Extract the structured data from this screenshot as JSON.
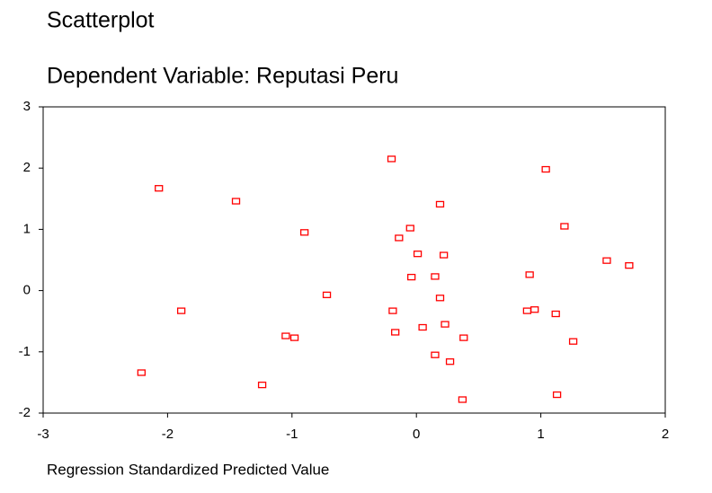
{
  "chart_data": {
    "type": "scatter",
    "title": "Scatterplot",
    "subtitle": "Dependent Variable: Reputasi Peru",
    "x_label": "Regression Standardized Predicted Value",
    "color": "#ff0000",
    "xlim": [
      -3,
      2
    ],
    "ylim": [
      -2,
      3
    ],
    "xticks": [
      -3,
      -2,
      -1,
      0,
      1,
      2
    ],
    "yticks": [
      -2,
      -1,
      0,
      1,
      2,
      3
    ],
    "x": [
      -2.21,
      -2.07,
      -1.89,
      -1.45,
      -1.24,
      -1.05,
      -0.98,
      -0.9,
      -0.72,
      -0.2,
      -0.19,
      -0.17,
      -0.14,
      -0.05,
      -0.04,
      0.01,
      0.05,
      0.15,
      0.15,
      0.19,
      0.19,
      0.22,
      0.23,
      0.27,
      0.37,
      0.38,
      0.89,
      0.91,
      0.95,
      1.04,
      1.12,
      1.13,
      1.19,
      1.26,
      1.53,
      1.71
    ],
    "values": [
      -1.34,
      1.67,
      -0.33,
      1.46,
      -1.54,
      -0.74,
      -0.77,
      0.95,
      -0.07,
      2.15,
      -0.33,
      -0.68,
      0.86,
      1.02,
      0.22,
      0.6,
      -0.6,
      0.23,
      -1.05,
      1.41,
      -0.12,
      0.58,
      -0.55,
      -1.16,
      -1.78,
      -0.77,
      -0.33,
      0.26,
      -0.31,
      1.98,
      -0.38,
      -1.7,
      1.05,
      -0.83,
      0.49,
      0.41
    ]
  }
}
